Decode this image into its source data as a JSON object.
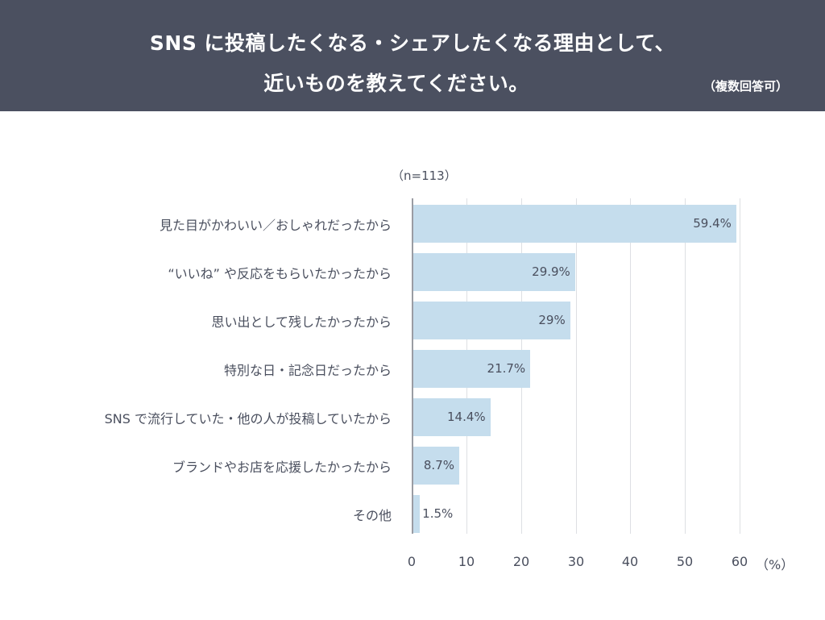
{
  "header": {
    "title_line1": "SNS に投稿したくなる・シェアしたくなる理由として、",
    "title_line2": "近いものを教えてください。",
    "note": "（複数回答可）",
    "background": "#4b5060"
  },
  "sample": "（n=113）",
  "chart_data": {
    "type": "bar",
    "orientation": "horizontal",
    "title": "SNS に投稿したくなる・シェアしたくなる理由として、近いものを教えてください。（複数回答可）",
    "subtitle": "（n=113）",
    "categories": [
      "見た目がかわいい／おしゃれだったから",
      "“いいね” や反応をもらいたかったから",
      "思い出として残したかったから",
      "特別な日・記念日だったから",
      "SNS で流行していた・他の人が投稿していたから",
      "ブランドやお店を応援したかったから",
      "その他"
    ],
    "values": [
      59.4,
      29.9,
      29,
      21.7,
      14.4,
      8.7,
      1.5
    ],
    "value_labels": [
      "59.4%",
      "29.9%",
      "29%",
      "21.7%",
      "14.4%",
      "8.7%",
      "1.5%"
    ],
    "xlabel": "（%）",
    "ylabel": "",
    "xlim": [
      0,
      60
    ],
    "xticks": [
      "0",
      "10",
      "20",
      "30",
      "40",
      "50",
      "60"
    ],
    "grid": true,
    "legend": "none",
    "bar_color": "#c5dded"
  }
}
